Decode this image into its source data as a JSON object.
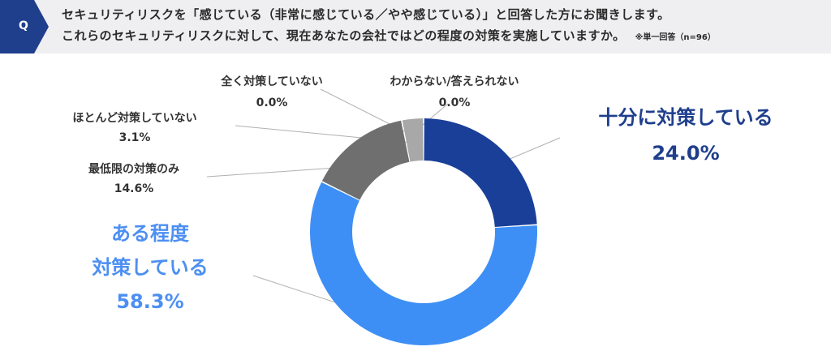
{
  "question": {
    "badge": "Q",
    "line1": "セキュリティリスクを「感じている（非常に感じている／やや感じている）」と回答した方にお聞きします。",
    "line2": "これらのセキュリティリスクに対して、現在あなたの会社ではどの程度の対策を実施していますか。",
    "note": "※単一回答（n=96）",
    "badge_color": "#1f3e8c"
  },
  "chart_data": {
    "type": "pie",
    "style": "donut",
    "start": "top",
    "direction": "clockwise",
    "slices": [
      {
        "label": "十分に対策している",
        "value": 24.0,
        "value_text": "24.0%",
        "color": "#1a3f99"
      },
      {
        "label_lines": [
          "ある程度",
          "対策している"
        ],
        "value": 58.3,
        "value_text": "58.3%",
        "color": "#3d8ff5"
      },
      {
        "label": "最低限の対策のみ",
        "value": 14.6,
        "value_text": "14.6%",
        "color": "#6f6f6f"
      },
      {
        "label": "ほとんど対策していない",
        "value": 3.1,
        "value_text": "3.1%",
        "color": "#a8a8a8"
      },
      {
        "label": "全く対策していない",
        "value": 0.0,
        "value_text": "0.0%",
        "color": "#c8c8c8"
      },
      {
        "label": "わからない/答えられない",
        "value": 0.0,
        "value_text": "0.0%",
        "color": "#d8d8d8"
      }
    ],
    "leader_line_color": "#b0b0b0"
  }
}
